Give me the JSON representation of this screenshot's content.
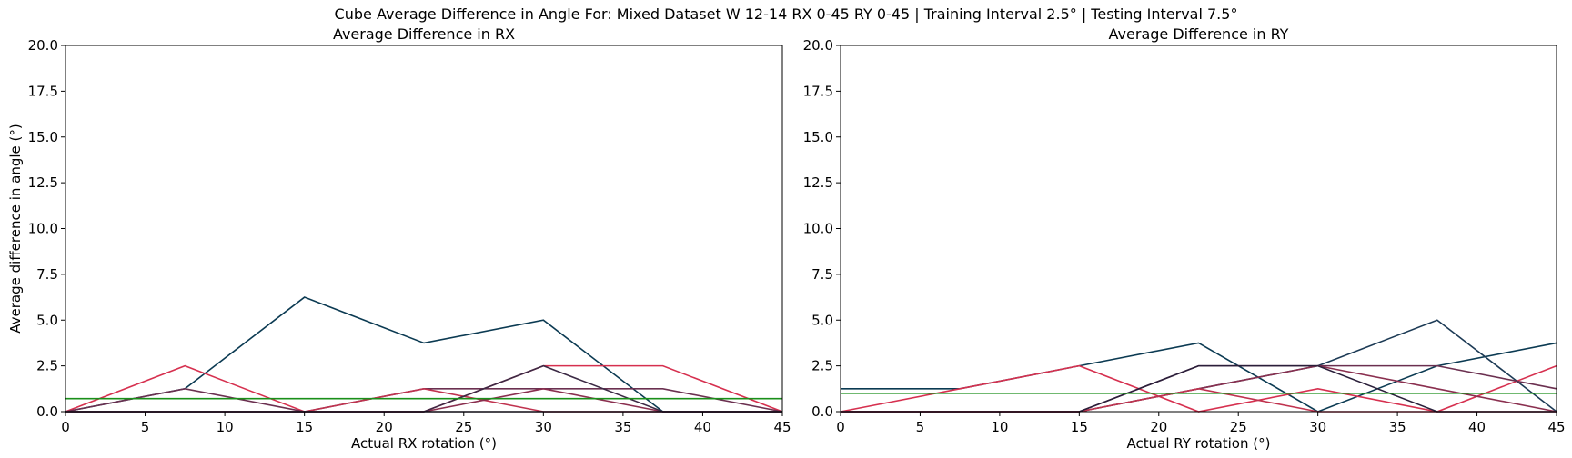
{
  "suptitle": "Cube Average Difference in Angle For: Mixed Dataset W 12-14 RX 0-45 RY 0-45 | Training Interval 2.5° | Testing Interval 7.5°",
  "chart_data": [
    {
      "type": "line",
      "title": "Average Difference in RX",
      "xlabel": "Actual RX rotation (°)",
      "ylabel": "Average difference in angle (°)",
      "xlim": [
        0,
        45
      ],
      "ylim": [
        0,
        20
      ],
      "xticks": [
        0,
        5,
        10,
        15,
        20,
        25,
        30,
        35,
        40,
        45
      ],
      "yticks": [
        "0.0",
        "2.5",
        "5.0",
        "7.5",
        "10.0",
        "12.5",
        "15.0",
        "17.5",
        "20.0"
      ],
      "grid": false,
      "series": [
        {
          "color": "#0b3a52",
          "x": [
            0,
            7.5,
            15,
            22.5,
            30,
            37.5,
            45
          ],
          "y": [
            0,
            1.25,
            6.25,
            3.75,
            5.0,
            0,
            0
          ]
        },
        {
          "color": "#d6304f",
          "x": [
            0,
            7.5,
            15,
            22.5,
            30,
            37.5,
            45
          ],
          "y": [
            0,
            2.5,
            0,
            0,
            2.5,
            2.5,
            0
          ]
        },
        {
          "color": "#6b3050",
          "x": [
            0,
            7.5,
            15,
            22.5,
            30,
            37.5,
            45
          ],
          "y": [
            0,
            1.25,
            0,
            1.25,
            1.25,
            1.25,
            0
          ]
        },
        {
          "color": "#c0334f",
          "x": [
            0,
            7.5,
            15,
            22.5,
            30,
            37.5,
            45
          ],
          "y": [
            0,
            0,
            0,
            1.25,
            0,
            0,
            0
          ]
        },
        {
          "color": "#8a2f4f",
          "x": [
            0,
            7.5,
            15,
            22.5,
            30,
            37.5,
            45
          ],
          "y": [
            0,
            0,
            0,
            0,
            1.25,
            0,
            0
          ]
        },
        {
          "color": "#3c2a45",
          "x": [
            0,
            7.5,
            15,
            22.5,
            30,
            37.5,
            45
          ],
          "y": [
            0,
            0,
            0,
            0,
            2.5,
            0,
            0
          ]
        },
        {
          "color": "#2a1f3a",
          "x": [
            0,
            7.5,
            15,
            22.5,
            30,
            37.5,
            45
          ],
          "y": [
            0,
            0,
            0,
            0,
            0,
            0,
            0
          ]
        },
        {
          "color": "#1a8f1a",
          "x": [
            0,
            45
          ],
          "y": [
            0.71,
            0.71
          ]
        }
      ]
    },
    {
      "type": "line",
      "title": "Average Difference in RY",
      "xlabel": "Actual RY rotation (°)",
      "ylabel": "",
      "xlim": [
        0,
        45
      ],
      "ylim": [
        0,
        20
      ],
      "xticks": [
        0,
        5,
        10,
        15,
        20,
        25,
        30,
        35,
        40,
        45
      ],
      "yticks": [
        "0.0",
        "2.5",
        "5.0",
        "7.5",
        "10.0",
        "12.5",
        "15.0",
        "17.5",
        "20.0"
      ],
      "grid": false,
      "series": [
        {
          "color": "#0b3a52",
          "x": [
            0,
            7.5,
            15,
            22.5,
            30,
            37.5,
            45
          ],
          "y": [
            1.25,
            1.25,
            2.5,
            3.75,
            0,
            2.5,
            3.75
          ]
        },
        {
          "color": "#1c3a55",
          "x": [
            0,
            7.5,
            15,
            22.5,
            30,
            37.5,
            45
          ],
          "y": [
            0,
            0,
            0,
            1.25,
            2.5,
            5.0,
            0
          ]
        },
        {
          "color": "#d6304f",
          "x": [
            0,
            7.5,
            15,
            22.5,
            30,
            37.5,
            45
          ],
          "y": [
            0,
            1.25,
            2.5,
            0,
            1.25,
            0,
            2.5
          ]
        },
        {
          "color": "#6b3050",
          "x": [
            0,
            7.5,
            15,
            22.5,
            30,
            37.5,
            45
          ],
          "y": [
            0,
            0,
            0,
            2.5,
            2.5,
            2.5,
            1.25
          ]
        },
        {
          "color": "#8a2f4f",
          "x": [
            0,
            7.5,
            15,
            22.5,
            30,
            37.5,
            45
          ],
          "y": [
            0,
            0,
            0,
            1.25,
            2.5,
            1.25,
            0
          ]
        },
        {
          "color": "#c0334f",
          "x": [
            0,
            7.5,
            15,
            22.5,
            30,
            37.5,
            45
          ],
          "y": [
            0,
            0,
            0,
            1.25,
            0,
            0,
            0
          ]
        },
        {
          "color": "#2a1f3a",
          "x": [
            0,
            7.5,
            15,
            22.5,
            30,
            37.5,
            45
          ],
          "y": [
            0,
            0,
            0,
            2.5,
            2.5,
            0,
            0
          ]
        },
        {
          "color": "#1a8f1a",
          "x": [
            0,
            45
          ],
          "y": [
            1.0,
            1.0
          ]
        }
      ]
    }
  ]
}
